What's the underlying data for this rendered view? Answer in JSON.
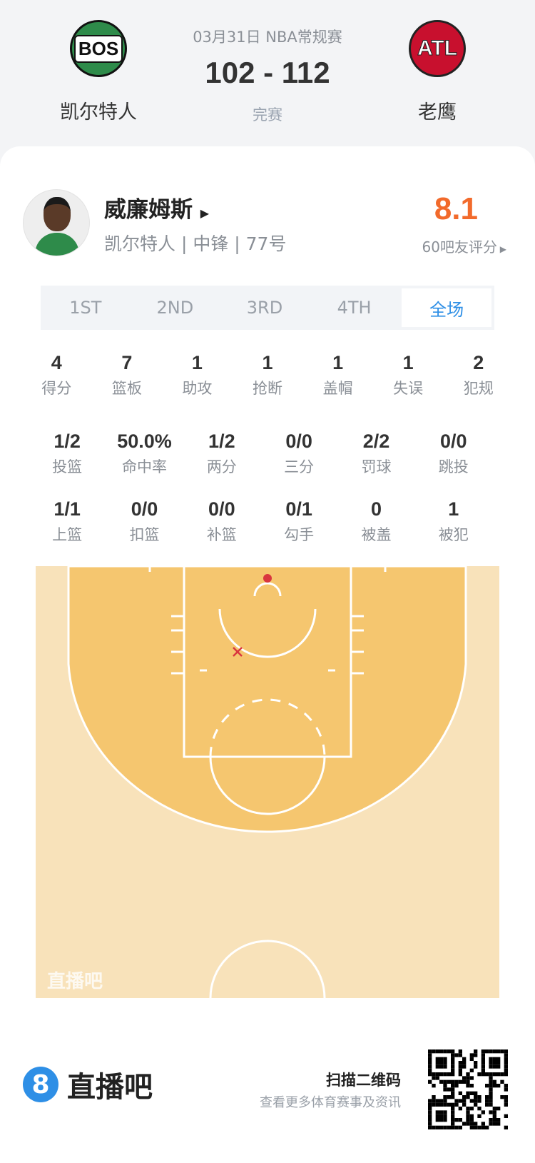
{
  "match": {
    "date_league": "03月31日 NBA常规赛",
    "score": "102 - 112",
    "status": "完赛",
    "home": {
      "abbr": "BOS",
      "name": "凯尔特人",
      "color": "#2e8b4a"
    },
    "away": {
      "abbr": "ATL",
      "name": "老鹰",
      "color": "#c8102e"
    }
  },
  "player": {
    "name": "威廉姆斯",
    "info": "凯尔特人 | 中锋 | 77号",
    "rating": "8.1",
    "rating_label": "60吧友评分"
  },
  "tabs": [
    {
      "label": "1ST"
    },
    {
      "label": "2ND"
    },
    {
      "label": "3RD"
    },
    {
      "label": "4TH"
    },
    {
      "label": "全场",
      "active": true
    }
  ],
  "stats_row1": [
    {
      "v": "4",
      "l": "得分"
    },
    {
      "v": "7",
      "l": "篮板"
    },
    {
      "v": "1",
      "l": "助攻"
    },
    {
      "v": "1",
      "l": "抢断"
    },
    {
      "v": "1",
      "l": "盖帽"
    },
    {
      "v": "1",
      "l": "失误"
    },
    {
      "v": "2",
      "l": "犯规"
    }
  ],
  "stats_row2": [
    {
      "v": "1/2",
      "l": "投篮"
    },
    {
      "v": "50.0%",
      "l": "命中率"
    },
    {
      "v": "1/2",
      "l": "两分"
    },
    {
      "v": "0/0",
      "l": "三分"
    },
    {
      "v": "2/2",
      "l": "罚球"
    },
    {
      "v": "0/0",
      "l": "跳投"
    }
  ],
  "stats_row3": [
    {
      "v": "1/1",
      "l": "上篮"
    },
    {
      "v": "0/0",
      "l": "扣篮"
    },
    {
      "v": "0/0",
      "l": "补篮"
    },
    {
      "v": "0/1",
      "l": "勾手"
    },
    {
      "v": "0",
      "l": "被盖"
    },
    {
      "v": "1",
      "l": "被犯"
    }
  ],
  "court": {
    "watermark": "直播吧",
    "shots": [
      {
        "result": "made",
        "color": "#d9363e"
      },
      {
        "result": "missed",
        "color": "#d9363e"
      }
    ]
  },
  "footer": {
    "brand": "直播吧",
    "scan": "扫描二维码",
    "sub": "查看更多体育赛事及资讯"
  }
}
